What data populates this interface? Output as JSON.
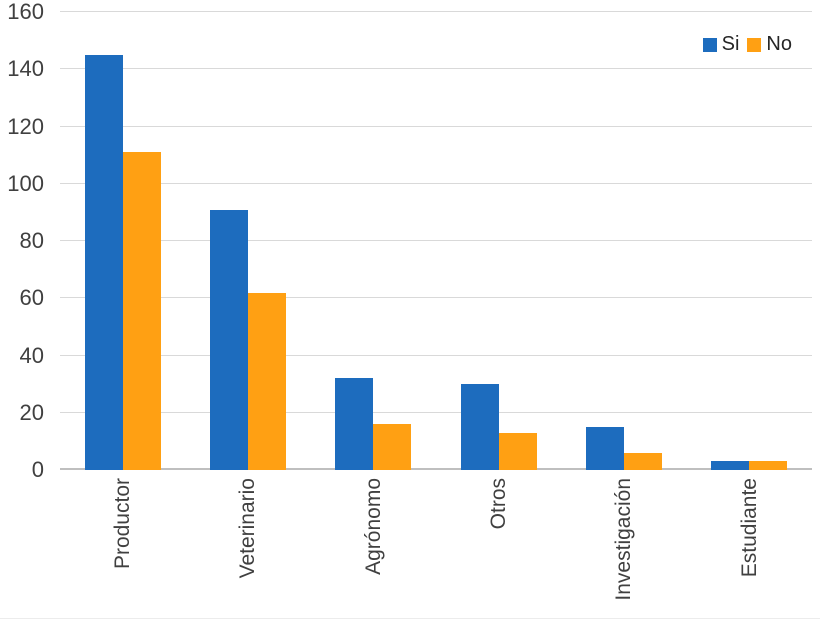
{
  "chart_data": {
    "type": "bar",
    "title": "",
    "categories": [
      "Productor",
      "Veterinario",
      "Agrónomo",
      "Otros",
      "Investigación",
      "Estudiante"
    ],
    "series": [
      {
        "name": "Si",
        "color": "#1d6cbe",
        "values": [
          145,
          91,
          32,
          30,
          15,
          3
        ]
      },
      {
        "name": "No",
        "color": "#ffa013",
        "values": [
          111,
          62,
          16,
          13,
          6,
          3
        ]
      }
    ],
    "ylim": [
      0,
      160
    ],
    "y_tick_step": 20,
    "y_ticks": [
      160,
      140,
      120,
      100,
      80,
      60,
      40,
      20,
      0
    ],
    "grid": true,
    "legend_position": "top-right",
    "colors": {
      "gridline": "#d9d9d9",
      "axis_line": "#bfbfbf",
      "axis_text": "#404040"
    }
  }
}
